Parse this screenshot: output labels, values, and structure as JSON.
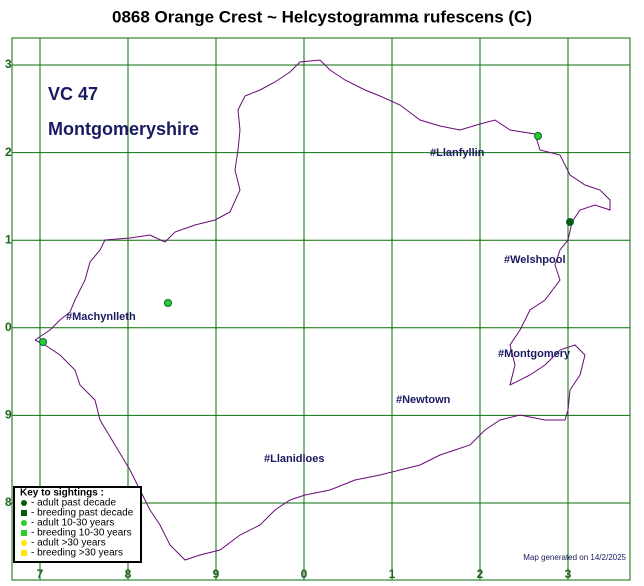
{
  "title": "0868 Orange Crest ~ Helcystogramma rufescens (C)",
  "region": {
    "code": "VC 47",
    "name": "Montgomeryshire"
  },
  "x_labels": [
    "7",
    "8",
    "9",
    "0",
    "1",
    "2",
    "3"
  ],
  "y_labels": [
    "3",
    "2",
    "1",
    "0",
    "9",
    "8"
  ],
  "towns": [
    "#Llanfyllin",
    "#Welshpool",
    "#Machynlleth",
    "#Montgomery",
    "#Newtown",
    "#Llanidloes"
  ],
  "key": {
    "title": "Key to sightings :",
    "items": [
      "- adult past decade",
      "- breeding past decade",
      "- adult 10-30 years",
      "- breeding 10-30 years",
      "- adult >30 years",
      "- breeding >30 years"
    ]
  },
  "footer": "Map generated on 14/2/2025"
}
